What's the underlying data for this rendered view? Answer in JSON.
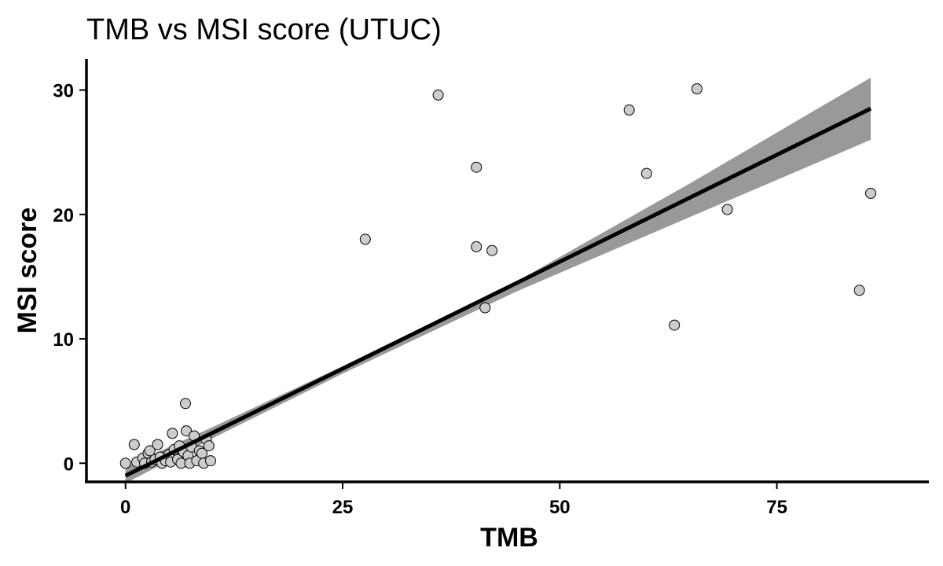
{
  "chart_data": {
    "type": "scatter",
    "title": "TMB vs MSI score (UTUC)",
    "xlabel": "TMB",
    "ylabel": "MSI score",
    "xlim": [
      -4.5,
      92.5
    ],
    "ylim": [
      -1.5,
      32.5
    ],
    "x_ticks": [
      0,
      25,
      50,
      75
    ],
    "y_ticks": [
      0,
      10,
      20,
      30
    ],
    "grid": false,
    "legend": "none",
    "colors": {
      "point_fill": "#cccccc",
      "point_stroke": "#000000",
      "fit_line": "#000000",
      "confidence_band": "#999999"
    },
    "fit": {
      "method": "linear",
      "x_range": [
        0,
        85.8
      ],
      "intercept": -1.0,
      "slope": 0.344,
      "ci_low": [
        [
          0,
          -1.6
        ],
        [
          10,
          2.0
        ],
        [
          25,
          7.2
        ],
        [
          45,
          13.8
        ],
        [
          65,
          19.8
        ],
        [
          85.8,
          26.0
        ]
      ],
      "ci_high": [
        [
          0,
          -0.3
        ],
        [
          10,
          2.9
        ],
        [
          25,
          7.8
        ],
        [
          45,
          14.6
        ],
        [
          65,
          22.5
        ],
        [
          85.8,
          31.0
        ]
      ]
    },
    "points": [
      {
        "x": 0.0,
        "y": 0.0
      },
      {
        "x": 1.0,
        "y": 1.5
      },
      {
        "x": 1.3,
        "y": 0.1
      },
      {
        "x": 2.0,
        "y": 0.4
      },
      {
        "x": 2.2,
        "y": 0.0
      },
      {
        "x": 2.6,
        "y": 0.8
      },
      {
        "x": 2.8,
        "y": 1.0
      },
      {
        "x": 3.0,
        "y": 0.1
      },
      {
        "x": 3.4,
        "y": 0.3
      },
      {
        "x": 3.7,
        "y": 1.5
      },
      {
        "x": 4.0,
        "y": 0.5
      },
      {
        "x": 4.2,
        "y": 0.0
      },
      {
        "x": 4.6,
        "y": 0.2
      },
      {
        "x": 5.0,
        "y": 0.7
      },
      {
        "x": 5.2,
        "y": 0.1
      },
      {
        "x": 5.4,
        "y": 2.4
      },
      {
        "x": 5.6,
        "y": 1.1
      },
      {
        "x": 6.0,
        "y": 0.3
      },
      {
        "x": 6.2,
        "y": 1.4
      },
      {
        "x": 6.4,
        "y": 0.0
      },
      {
        "x": 6.7,
        "y": 0.9
      },
      {
        "x": 6.9,
        "y": 4.8
      },
      {
        "x": 7.0,
        "y": 2.6
      },
      {
        "x": 7.2,
        "y": 0.6
      },
      {
        "x": 7.4,
        "y": 0.0
      },
      {
        "x": 7.6,
        "y": 1.3
      },
      {
        "x": 7.9,
        "y": 2.2
      },
      {
        "x": 8.2,
        "y": 0.2
      },
      {
        "x": 8.5,
        "y": 1.0
      },
      {
        "x": 8.8,
        "y": 0.8
      },
      {
        "x": 9.0,
        "y": 0.0
      },
      {
        "x": 9.3,
        "y": 1.9
      },
      {
        "x": 9.6,
        "y": 1.4
      },
      {
        "x": 9.8,
        "y": 0.2
      },
      {
        "x": 27.6,
        "y": 18.0
      },
      {
        "x": 36.0,
        "y": 29.6
      },
      {
        "x": 40.4,
        "y": 23.8
      },
      {
        "x": 40.4,
        "y": 17.4
      },
      {
        "x": 41.4,
        "y": 12.5
      },
      {
        "x": 42.2,
        "y": 17.1
      },
      {
        "x": 58.0,
        "y": 28.4
      },
      {
        "x": 60.0,
        "y": 23.3
      },
      {
        "x": 63.2,
        "y": 11.1
      },
      {
        "x": 65.8,
        "y": 30.1
      },
      {
        "x": 69.3,
        "y": 20.4
      },
      {
        "x": 84.5,
        "y": 13.9
      },
      {
        "x": 85.8,
        "y": 21.7
      }
    ]
  }
}
